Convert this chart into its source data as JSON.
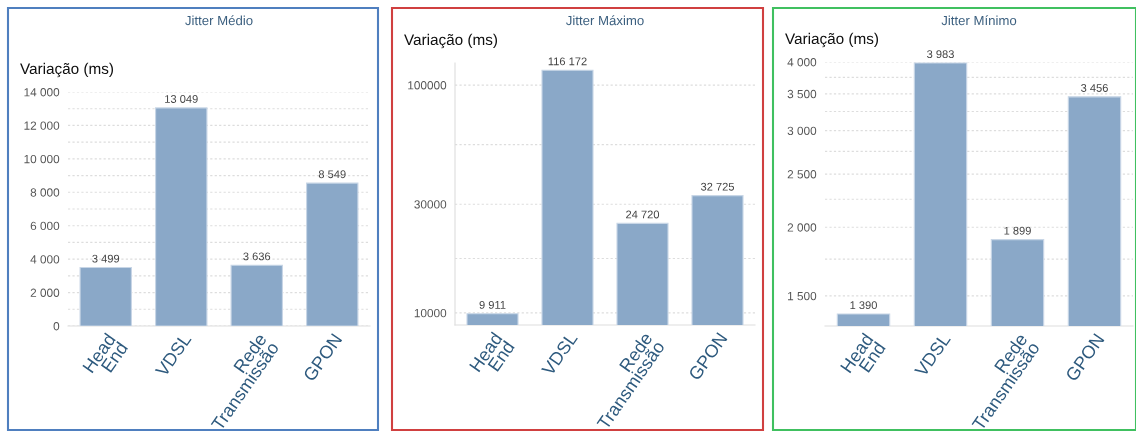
{
  "chart_data": [
    {
      "type": "bar",
      "title": "Jitter Médio",
      "ylabel": "Variação (ms)",
      "categories": [
        "Head\nEnd",
        "VDSL",
        "Rede\nTransmissão",
        "GPON"
      ],
      "values": [
        3499,
        13049,
        3636,
        8549
      ],
      "value_labels": [
        "3 499",
        "13 049",
        "3 636",
        "8 549"
      ],
      "color": "#8aa8c8",
      "ylim": [
        0,
        14000
      ],
      "yticks": [
        {
          "value": 0,
          "label": "0"
        },
        {
          "value": 1000,
          "label": null
        },
        {
          "value": 2000,
          "label": "2 000"
        },
        {
          "value": 3000,
          "label": null
        },
        {
          "value": 4000,
          "label": "4 000"
        },
        {
          "value": 5000,
          "label": null
        },
        {
          "value": 6000,
          "label": "6 000"
        },
        {
          "value": 7000,
          "label": null
        },
        {
          "value": 8000,
          "label": "8 000"
        },
        {
          "value": 9000,
          "label": null
        },
        {
          "value": 10000,
          "label": "10 000"
        },
        {
          "value": 11000,
          "label": null
        },
        {
          "value": 12000,
          "label": "12 000"
        },
        {
          "value": 13000,
          "label": null
        },
        {
          "value": 14000,
          "label": "14 000"
        }
      ],
      "grid": "y"
    },
    {
      "type": "bar",
      "title": "Jitter Máximo",
      "ylabel": "Variação (ms)",
      "categories": [
        "Head\nEnd",
        "VDSL",
        "Rede\nTransmissão",
        "GPON"
      ],
      "values": [
        9911,
        116172,
        24720,
        32725
      ],
      "value_labels": [
        "9 911",
        "116 172",
        "24 720",
        "32 725"
      ],
      "color": "#8aa8c8",
      "log": true,
      "ylim": [
        8850,
        125000
      ],
      "yticks": [
        10000,
        {
          "value": 17321,
          "label": null
        },
        30000,
        {
          "value": 54772,
          "label": null
        },
        100000
      ],
      "grid": "y"
    },
    {
      "type": "bar",
      "title": "Jitter Mínimo",
      "ylabel": "Variação (ms)",
      "categories": [
        "Head\nEnd",
        "VDSL",
        "Rede\nTransmissão",
        "GPON"
      ],
      "values": [
        1390,
        3983,
        1899,
        3456
      ],
      "value_labels": [
        "1 390",
        "3 983",
        "1 899",
        "3 456"
      ],
      "color": "#8aa8c8",
      "log": true,
      "ylim": [
        1322,
        4000
      ],
      "yticks": [
        {
          "value": 1500,
          "label": "1 500"
        },
        {
          "value": 1750,
          "label": null
        },
        {
          "value": 2000,
          "label": "2 000"
        },
        {
          "value": 2250,
          "label": null
        },
        {
          "value": 2500,
          "label": "2 500"
        },
        {
          "value": 2750,
          "label": null
        },
        {
          "value": 3000,
          "label": "3 000"
        },
        {
          "value": 3250,
          "label": null
        },
        {
          "value": 3500,
          "label": "3 500"
        },
        {
          "value": 3750,
          "label": null
        },
        {
          "value": 4000,
          "label": "4 000"
        }
      ],
      "grid": "y"
    }
  ]
}
